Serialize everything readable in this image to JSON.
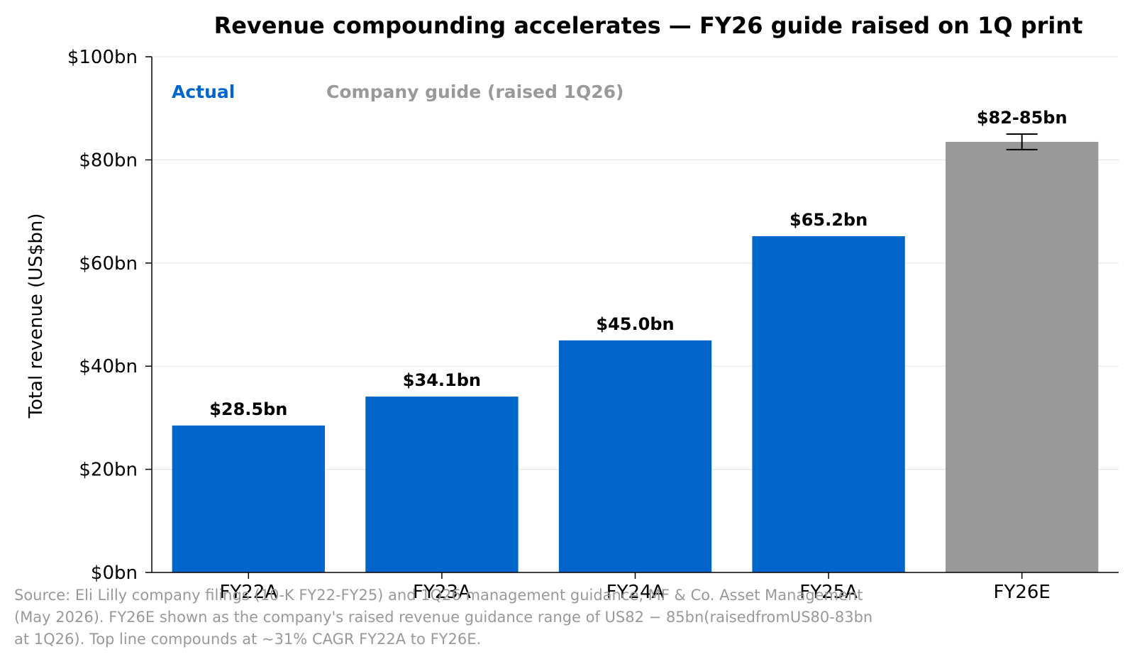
{
  "chart_data": {
    "type": "bar",
    "title": "Revenue compounding accelerates — FY26 guide raised on 1Q print",
    "ylabel": "Total revenue (US$bn)",
    "xlabel": "",
    "ylim": [
      0,
      100
    ],
    "yticks": [
      {
        "value": 0,
        "label": "$0bn"
      },
      {
        "value": 20,
        "label": "$20bn"
      },
      {
        "value": 40,
        "label": "$40bn"
      },
      {
        "value": 60,
        "label": "$60bn"
      },
      {
        "value": 80,
        "label": "$80bn"
      },
      {
        "value": 100,
        "label": "$100bn"
      }
    ],
    "grid": "horizontal",
    "categories": [
      "FY22A",
      "FY23A",
      "FY24A",
      "FY25A",
      "FY26E"
    ],
    "bars": [
      {
        "category": "FY22A",
        "value": 28.5,
        "label": "$28.5bn",
        "group": "actual"
      },
      {
        "category": "FY23A",
        "value": 34.1,
        "label": "$34.1bn",
        "group": "actual"
      },
      {
        "category": "FY24A",
        "value": 45.0,
        "label": "$45.0bn",
        "group": "actual"
      },
      {
        "category": "FY25A",
        "value": 65.2,
        "label": "$65.2bn",
        "group": "actual"
      },
      {
        "category": "FY26E",
        "value": 83.5,
        "label": "$82-85bn",
        "group": "guide",
        "range": [
          82,
          85
        ]
      }
    ],
    "legend": {
      "placement": "top-left",
      "entries": [
        {
          "label": "Actual",
          "group": "actual"
        },
        {
          "label": "Company guide (raised 1Q26)",
          "group": "guide"
        }
      ]
    },
    "colors": {
      "actual": "#0066cc",
      "guide": "#999999",
      "grid": "#e6e6e6",
      "axis": "#000000",
      "source": "#999999"
    },
    "source_lines": [
      "Source: Eli Lilly company filings (10-K FY22-FY25) and 1Q26 management guidance, MF & Co. Asset Management",
      "(May 2026). FY26E shown as the company's raised revenue guidance range of US82 − 85bn(raisedfromUS80-83bn",
      "at 1Q26). Top line compounds at ~31% CAGR FY22A to FY26E."
    ]
  }
}
